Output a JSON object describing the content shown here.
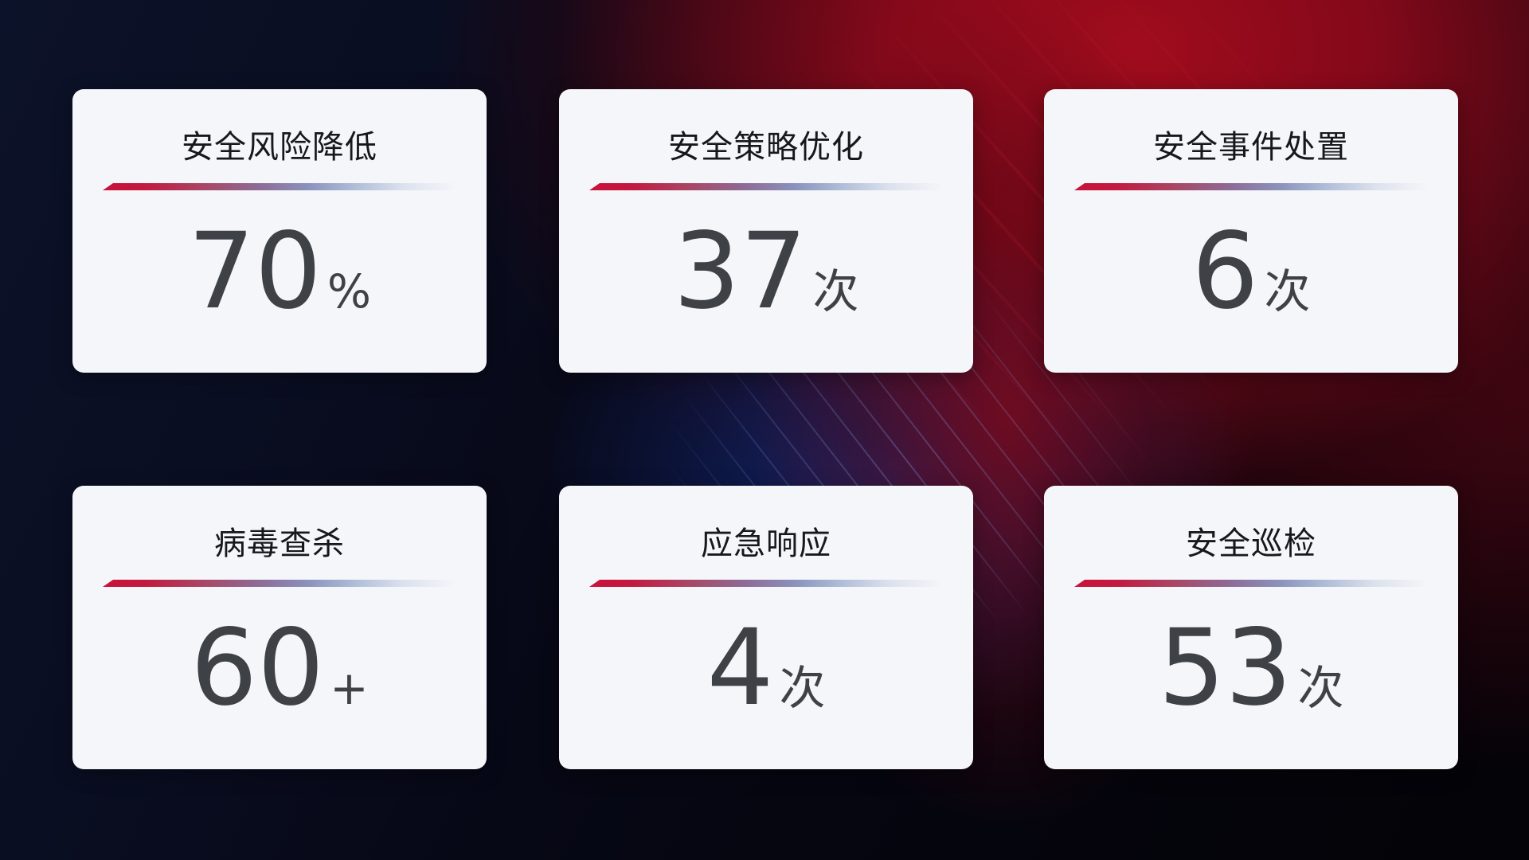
{
  "page": {
    "kind": "security-operations-dashboard"
  },
  "colors": {
    "card_background": "#f5f6fa",
    "title_text": "#17181c",
    "value_text": "#3e4146",
    "divider_red": "#c9123a",
    "divider_blue": "#b2bfd9",
    "background_navy": "#0a0e22",
    "background_red": "#a00c1d",
    "background_blue_glow": "#1c40b9"
  },
  "cards": [
    {
      "title": "安全风险降低",
      "value": "70",
      "unit": "%"
    },
    {
      "title": "安全策略优化",
      "value": "37",
      "unit": "次"
    },
    {
      "title": "安全事件处置",
      "value": "6",
      "unit": "次"
    },
    {
      "title": "病毒查杀",
      "value": "60",
      "unit": "+"
    },
    {
      "title": "应急响应",
      "value": "4",
      "unit": "次"
    },
    {
      "title": "安全巡检",
      "value": "53",
      "unit": "次"
    }
  ]
}
